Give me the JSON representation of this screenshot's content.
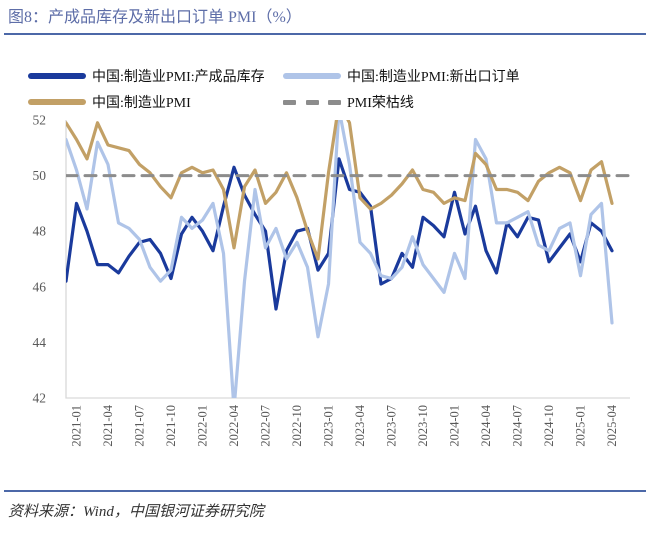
{
  "header": {
    "title": "图8：产成品库存及新出口订单 PMI（%）"
  },
  "legend": [
    {
      "label": "中国:制造业PMI:产成品库存",
      "color": "#1A3A9C",
      "style": "solid"
    },
    {
      "label": "中国:制造业PMI:新出口订单",
      "color": "#AFC4E8",
      "style": "solid"
    },
    {
      "label": "中国:制造业PMI",
      "color": "#C2A066",
      "style": "solid"
    },
    {
      "label": "PMI荣枯线",
      "color": "#8C8C8C",
      "style": "dashed"
    }
  ],
  "footer": {
    "source": "资料来源：Wind，中国银河证券研究院"
  },
  "colors": {
    "title_blue": "#5E6EA8",
    "rule_blue": "#4C68A8",
    "axis_text": "#595959",
    "axis_frame": "#D9D9D9"
  },
  "chart_data": {
    "type": "line",
    "title": "产成品库存及新出口订单 PMI（%）",
    "ylabel": "",
    "xlabel": "",
    "ylim": [
      42,
      52
    ],
    "yticks": [
      42,
      44,
      46,
      48,
      50,
      52
    ],
    "grid": false,
    "legend_position": "top",
    "x": [
      "2020-12",
      "2021-01",
      "2021-02",
      "2021-03",
      "2021-04",
      "2021-05",
      "2021-06",
      "2021-07",
      "2021-08",
      "2021-09",
      "2021-10",
      "2021-11",
      "2021-12",
      "2022-01",
      "2022-02",
      "2022-03",
      "2022-04",
      "2022-05",
      "2022-06",
      "2022-07",
      "2022-08",
      "2022-09",
      "2022-10",
      "2022-11",
      "2022-12",
      "2023-01",
      "2023-02",
      "2023-03",
      "2023-04",
      "2023-05",
      "2023-06",
      "2023-07",
      "2023-08",
      "2023-09",
      "2023-10",
      "2023-11",
      "2023-12",
      "2024-01",
      "2024-02",
      "2024-03",
      "2024-04",
      "2024-05",
      "2024-06",
      "2024-07",
      "2024-08",
      "2024-09",
      "2024-10",
      "2024-11",
      "2024-12",
      "2025-01",
      "2025-02",
      "2025-03",
      "2025-04"
    ],
    "x_tick_labels": [
      "2021-01",
      "2021-04",
      "2021-07",
      "2021-10",
      "2022-01",
      "2022-04",
      "2022-07",
      "2022-10",
      "2023-01",
      "2023-04",
      "2023-07",
      "2023-10",
      "2024-01",
      "2024-04",
      "2024-07",
      "2024-10",
      "2025-01",
      "2025-04"
    ],
    "series": [
      {
        "name": "中国:制造业PMI:产成品库存",
        "color": "#1A3A9C",
        "values": [
          46.2,
          49.0,
          48.0,
          46.8,
          46.8,
          46.5,
          47.1,
          47.6,
          47.7,
          47.2,
          46.3,
          47.9,
          48.5,
          48.0,
          47.3,
          48.9,
          50.3,
          49.3,
          48.6,
          48.0,
          45.2,
          47.3,
          48.0,
          48.1,
          46.6,
          47.2,
          50.6,
          49.5,
          49.4,
          48.9,
          46.1,
          46.3,
          47.2,
          46.7,
          48.5,
          48.2,
          47.8,
          49.4,
          47.9,
          48.9,
          47.3,
          46.5,
          48.3,
          47.8,
          48.5,
          48.4,
          46.9,
          47.4,
          47.9,
          46.9,
          48.3,
          48.0,
          47.3
        ]
      },
      {
        "name": "中国:制造业PMI:新出口订单",
        "color": "#AFC4E8",
        "values": [
          51.3,
          50.2,
          48.8,
          51.2,
          50.4,
          48.3,
          48.1,
          47.7,
          46.7,
          46.2,
          46.6,
          48.5,
          48.1,
          48.4,
          49.0,
          47.2,
          41.6,
          46.2,
          49.5,
          47.4,
          48.1,
          47.0,
          47.6,
          46.7,
          44.2,
          46.1,
          52.4,
          50.4,
          47.6,
          47.2,
          46.4,
          46.3,
          46.7,
          47.8,
          46.8,
          46.3,
          45.8,
          47.2,
          46.3,
          51.3,
          50.6,
          48.3,
          48.3,
          48.5,
          48.7,
          47.5,
          47.3,
          48.1,
          48.3,
          46.4,
          48.6,
          49.0,
          44.7
        ]
      },
      {
        "name": "中国:制造业PMI",
        "color": "#C2A066",
        "values": [
          51.9,
          51.3,
          50.6,
          51.9,
          51.1,
          51.0,
          50.9,
          50.4,
          50.1,
          49.6,
          49.2,
          50.1,
          50.3,
          50.1,
          50.2,
          49.5,
          47.4,
          49.6,
          50.2,
          49.0,
          49.4,
          50.1,
          49.2,
          48.0,
          47.0,
          50.1,
          52.6,
          51.9,
          49.2,
          48.8,
          49.0,
          49.3,
          49.7,
          50.2,
          49.5,
          49.4,
          49.0,
          49.2,
          49.1,
          50.8,
          50.4,
          49.5,
          49.5,
          49.4,
          49.1,
          49.8,
          50.1,
          50.3,
          50.1,
          49.1,
          50.2,
          50.5,
          49.0
        ]
      },
      {
        "name": "PMI荣枯线",
        "color": "#8C8C8C",
        "dashed": true,
        "constant": 50
      }
    ]
  }
}
